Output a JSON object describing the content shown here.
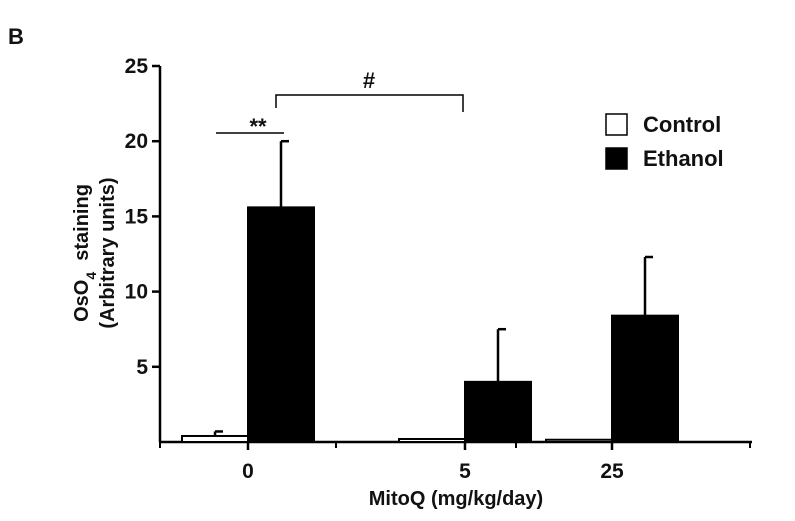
{
  "panel_label": "B",
  "chart_data": {
    "type": "bar",
    "title": "",
    "categories": [
      "0",
      "5",
      "25"
    ],
    "xlabel": "MitoQ (mg/kg/day)",
    "ylabel_line1_prefix": "OsO",
    "ylabel_line1_subscript": "4",
    "ylabel_line1_suffix": "  staining",
    "ylabel_line2": "(Arbitrary units)",
    "ylim": [
      0,
      25
    ],
    "yticks": [
      5,
      10,
      15,
      20,
      25
    ],
    "ytick_labels": [
      "5",
      "10",
      "15",
      "20",
      "25"
    ],
    "grid": false,
    "legend_position": "top-right",
    "series": [
      {
        "name": "Control",
        "color": "#ffffff",
        "stroke": "#000000",
        "values": [
          0.4,
          0.2,
          0.15
        ],
        "errors": [
          0.3,
          0.0,
          0.0
        ]
      },
      {
        "name": "Ethanol",
        "color": "#000000",
        "stroke": "#000000",
        "values": [
          15.6,
          4.0,
          8.4
        ],
        "errors": [
          4.4,
          3.5,
          3.9
        ]
      }
    ],
    "annotations": [
      {
        "text": "**",
        "type": "significance",
        "between": "Control 0 vs Ethanol 0"
      },
      {
        "text": "#",
        "type": "significance",
        "between": "Ethanol 0 vs Ethanol 5"
      }
    ]
  }
}
